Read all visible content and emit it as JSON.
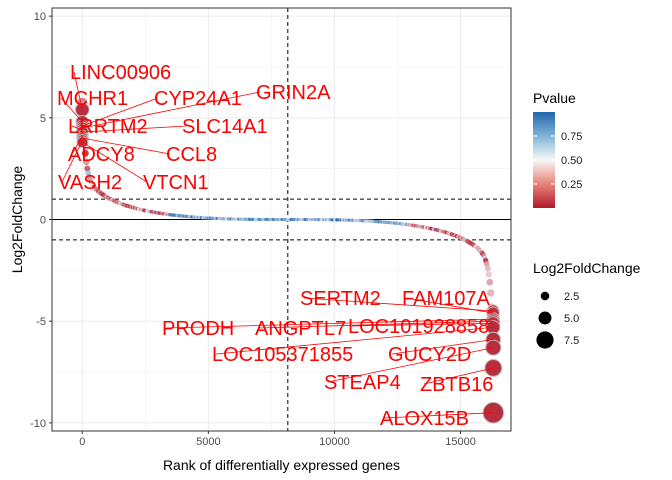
{
  "chart_data": {
    "type": "scatter",
    "title": "",
    "xlabel": "Rank of differentially expressed genes",
    "ylabel": "Log2FoldChange",
    "xlim": [
      -1200,
      17000
    ],
    "ylim": [
      -10.4,
      10.4
    ],
    "x_ticks": [
      0,
      5000,
      10000,
      15000
    ],
    "x_tick_labels": [
      "0",
      "5000",
      "10000",
      "15000"
    ],
    "y_ticks": [
      -10,
      -5,
      0,
      5,
      10
    ],
    "y_tick_labels": [
      "-10",
      "-5",
      "0",
      "5",
      "10"
    ],
    "grid": true,
    "reference_lines": {
      "hline_solid": 0,
      "hline_dashed": [
        1,
        -1
      ],
      "vline_dashed": 8150
    },
    "colors": {
      "low_pvalue": "#b2182b",
      "mid_pvalue": "#f7f7f7",
      "high_pvalue": "#2166ac",
      "label": "#ff0000",
      "point_outline": "#bdbdbd"
    },
    "n_genes": 16300,
    "labeled_genes": [
      {
        "gene": "LINC00906",
        "rank": 1,
        "log2fc": 5.4,
        "pvalue": 0.05
      },
      {
        "gene": "MCHR1",
        "rank": 2,
        "log2fc": 4.8,
        "pvalue": 0.05
      },
      {
        "gene": "CYP24A1",
        "rank": 3,
        "log2fc": 4.6,
        "pvalue": 0.05
      },
      {
        "gene": "GRIN2A",
        "rank": 4,
        "log2fc": 4.5,
        "pvalue": 0.05
      },
      {
        "gene": "LRRTM2",
        "rank": 5,
        "log2fc": 4.4,
        "pvalue": 0.06
      },
      {
        "gene": "SLC14A1",
        "rank": 6,
        "log2fc": 4.3,
        "pvalue": 0.06
      },
      {
        "gene": "ADCY8",
        "rank": 7,
        "log2fc": 4.1,
        "pvalue": 0.06
      },
      {
        "gene": "CCL8",
        "rank": 8,
        "log2fc": 4.0,
        "pvalue": 0.06
      },
      {
        "gene": "VASH2",
        "rank": 9,
        "log2fc": 3.9,
        "pvalue": 0.06
      },
      {
        "gene": "VTCN1",
        "rank": 10,
        "log2fc": 3.8,
        "pvalue": 0.06
      },
      {
        "gene": "SERTM2",
        "rank": 16290,
        "log2fc": -4.5,
        "pvalue": 0.06
      },
      {
        "gene": "FAM107A",
        "rank": 16291,
        "log2fc": -4.6,
        "pvalue": 0.06
      },
      {
        "gene": "PRODH",
        "rank": 16292,
        "log2fc": -4.9,
        "pvalue": 0.06
      },
      {
        "gene": "ANGPTL7",
        "rank": 16293,
        "log2fc": -5.0,
        "pvalue": 0.06
      },
      {
        "gene": "LOC101928858",
        "rank": 16294,
        "log2fc": -5.1,
        "pvalue": 0.06
      },
      {
        "gene": "LOC105371855",
        "rank": 16295,
        "log2fc": -5.3,
        "pvalue": 0.05
      },
      {
        "gene": "GUCY2D",
        "rank": 16296,
        "log2fc": -5.9,
        "pvalue": 0.05
      },
      {
        "gene": "STEAP4",
        "rank": 16297,
        "log2fc": -6.3,
        "pvalue": 0.05
      },
      {
        "gene": "ZBTB16",
        "rank": 16298,
        "log2fc": -7.3,
        "pvalue": 0.05
      },
      {
        "gene": "ALOX15B",
        "rank": 16299,
        "log2fc": -9.5,
        "pvalue": 0.05
      }
    ],
    "legend": {
      "position": "right",
      "color_title": "Pvalue",
      "color_ticks": [
        0.75,
        0.5,
        0.25
      ],
      "color_tick_labels": [
        "0.75",
        "0.50",
        "0.25"
      ],
      "color_range": [
        0.0,
        1.0
      ],
      "size_title": "Log2FoldChange",
      "size_values": [
        2.5,
        5.0,
        7.5
      ],
      "size_labels": [
        "2.5",
        "5.0",
        "7.5"
      ]
    }
  }
}
